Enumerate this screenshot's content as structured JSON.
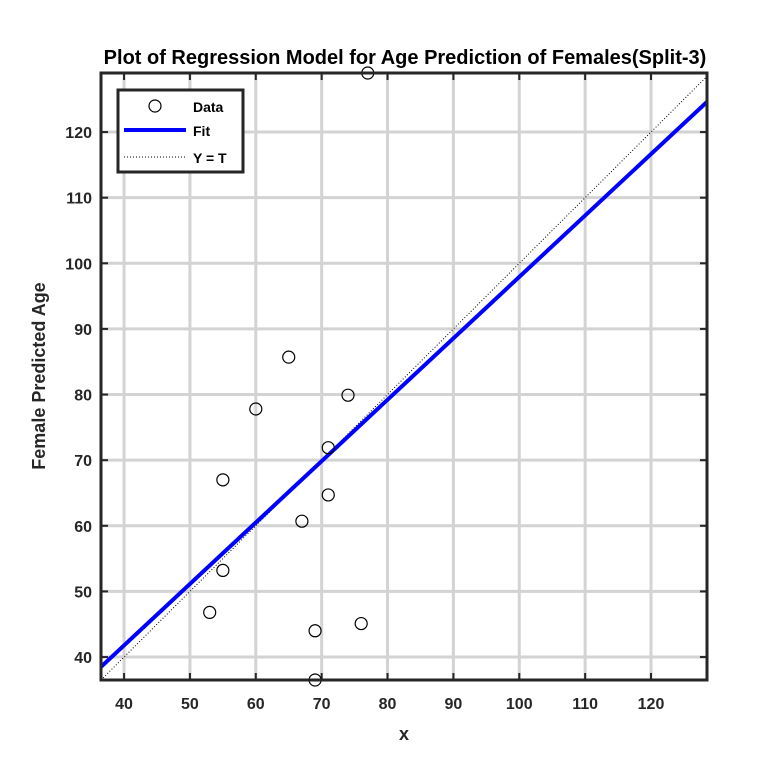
{
  "chart_data": {
    "type": "scatter",
    "title": "Plot of Regression Model for Age Prediction of Females(Split-3)",
    "xlabel": "x",
    "ylabel": "Female Predicted Age",
    "xlim": [
      36.5,
      128.5
    ],
    "ylim": [
      36.5,
      129
    ],
    "xticks": [
      40,
      50,
      60,
      70,
      80,
      90,
      100,
      110,
      120
    ],
    "yticks": [
      40,
      50,
      60,
      70,
      80,
      90,
      100,
      110,
      120
    ],
    "grid": true,
    "legend_position": "top-left",
    "series": [
      {
        "name": "Data",
        "kind": "markers",
        "marker": "open-circle",
        "color": "#000000",
        "points": [
          {
            "x": 53,
            "y": 46.8
          },
          {
            "x": 55,
            "y": 53.2
          },
          {
            "x": 55,
            "y": 67
          },
          {
            "x": 60,
            "y": 77.8
          },
          {
            "x": 65,
            "y": 85.7
          },
          {
            "x": 67,
            "y": 60.7
          },
          {
            "x": 69,
            "y": 44
          },
          {
            "x": 69,
            "y": 36.5
          },
          {
            "x": 71,
            "y": 71.9
          },
          {
            "x": 71,
            "y": 64.7
          },
          {
            "x": 74,
            "y": 79.9
          },
          {
            "x": 76,
            "y": 45.1
          },
          {
            "x": 77,
            "y": 129
          }
        ]
      },
      {
        "name": "Fit",
        "kind": "line",
        "color": "#0000ff",
        "x": [
          36.5,
          128.5
        ],
        "y": [
          38.5,
          124.6
        ]
      },
      {
        "name": "Y = T",
        "kind": "dotted-line",
        "color": "#000000",
        "x": [
          36.5,
          128.5
        ],
        "y": [
          36.5,
          128.5
        ]
      }
    ]
  }
}
